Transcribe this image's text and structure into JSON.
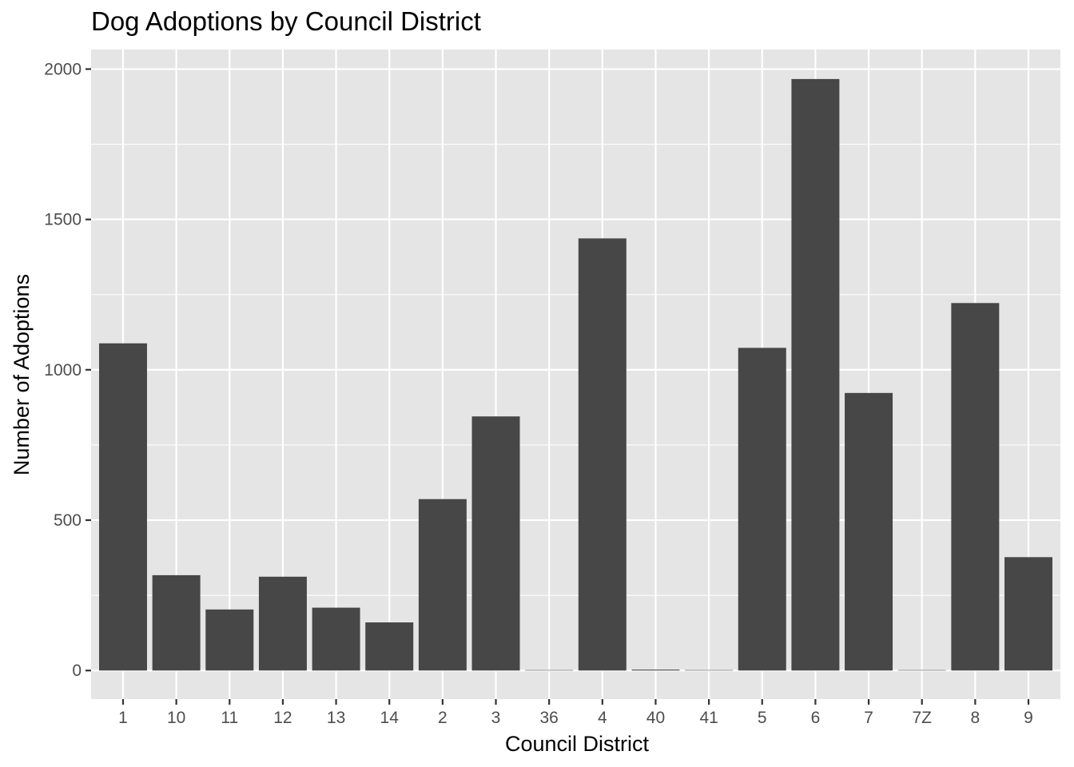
{
  "chart_data": {
    "type": "bar",
    "title": "Dog Adoptions by Council District",
    "xlabel": "Council District",
    "ylabel": "Number of Adoptions",
    "categories": [
      "1",
      "10",
      "11",
      "12",
      "13",
      "14",
      "2",
      "3",
      "36",
      "4",
      "40",
      "41",
      "5",
      "6",
      "7",
      "7Z",
      "8",
      "9"
    ],
    "values": [
      1088,
      317,
      203,
      312,
      209,
      160,
      570,
      845,
      1,
      1437,
      3,
      1,
      1073,
      1967,
      923,
      1,
      1222,
      377
    ],
    "ylim": [
      -95,
      2065
    ],
    "yticks": [
      0,
      500,
      1000,
      1500,
      2000
    ],
    "ytick_labels": [
      "0",
      "500",
      "1000",
      "1500",
      "2000"
    ],
    "grid": true,
    "legend": "none",
    "colors": {
      "bar": "#474747",
      "panel_background": "#e5e5e5",
      "grid_major": "#ffffff",
      "tick_label": "#4d4d4d",
      "text": "#000000"
    }
  }
}
